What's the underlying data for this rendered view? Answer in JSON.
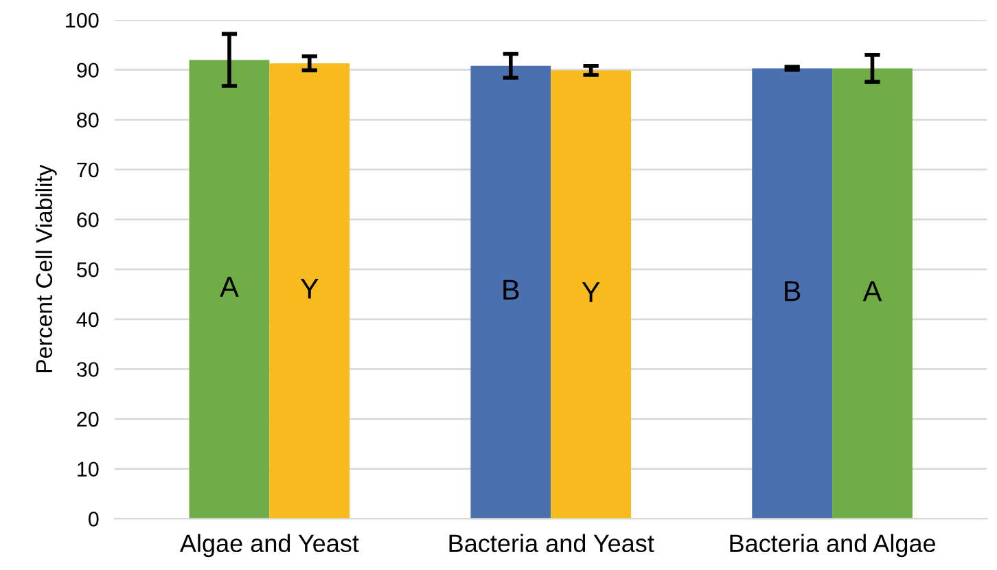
{
  "chart_data": {
    "type": "bar",
    "ylabel": "Percent Cell Viability",
    "categories": [
      "Algae and Yeast",
      "Bacteria and Yeast",
      "Bacteria and Algae"
    ],
    "series": [
      {
        "colors": [
          "#70ad47",
          "#4a70b0",
          "#4a70b0"
        ],
        "values": [
          92.0,
          90.8,
          90.3
        ],
        "errors": [
          5.2,
          2.4,
          0.3
        ],
        "value_labels": [
          "A",
          "B",
          "B"
        ]
      },
      {
        "colors": [
          "#f8bb1d",
          "#f8bb1d",
          "#70ad47"
        ],
        "values": [
          91.3,
          89.9,
          90.3
        ],
        "errors": [
          1.4,
          0.9,
          2.7
        ],
        "value_labels": [
          "Y",
          "Y",
          "A"
        ]
      }
    ],
    "ylim": [
      0,
      100
    ],
    "yticks": [
      0,
      10,
      20,
      30,
      40,
      50,
      60,
      70,
      80,
      90,
      100
    ],
    "grid": "y",
    "legend": false
  }
}
